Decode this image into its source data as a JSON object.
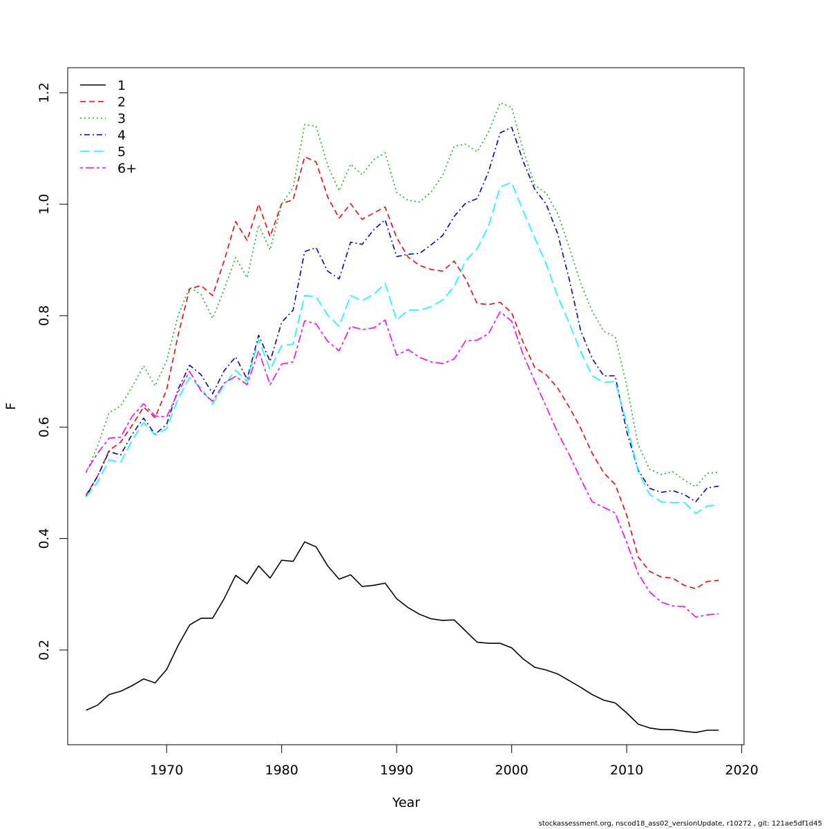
{
  "chart_data": {
    "type": "line",
    "xlabel": "Year",
    "ylabel": "F",
    "xlim": [
      1961.4,
      2020.2
    ],
    "ylim": [
      0.03,
      1.245
    ],
    "x_ticks": [
      1970,
      1980,
      1990,
      2000,
      2010,
      2020
    ],
    "y_ticks": [
      0.2,
      0.4,
      0.6,
      0.8,
      1.0,
      1.2
    ],
    "x_tick_labels": [
      "1970",
      "1980",
      "1990",
      "2000",
      "2010",
      "2020"
    ],
    "y_tick_labels": [
      "0.2",
      "0.4",
      "0.6",
      "0.8",
      "1.0",
      "1.2"
    ],
    "legend_position": "top-left",
    "x": [
      1963,
      1964,
      1965,
      1966,
      1967,
      1968,
      1969,
      1970,
      1971,
      1972,
      1973,
      1974,
      1975,
      1976,
      1977,
      1978,
      1979,
      1980,
      1981,
      1982,
      1983,
      1984,
      1985,
      1986,
      1987,
      1988,
      1989,
      1990,
      1991,
      1992,
      1993,
      1994,
      1995,
      1996,
      1997,
      1998,
      1999,
      2000,
      2001,
      2002,
      2003,
      2004,
      2005,
      2006,
      2007,
      2008,
      2009,
      2010,
      2011,
      2012,
      2013,
      2014,
      2015,
      2016,
      2017,
      2018
    ],
    "series": [
      {
        "name": "1",
        "color": "#000000",
        "dash": "solid",
        "values": [
          0.092,
          0.101,
          0.12,
          0.126,
          0.136,
          0.148,
          0.141,
          0.165,
          0.208,
          0.245,
          0.257,
          0.257,
          0.292,
          0.334,
          0.319,
          0.351,
          0.329,
          0.361,
          0.359,
          0.394,
          0.385,
          0.351,
          0.327,
          0.335,
          0.314,
          0.316,
          0.32,
          0.292,
          0.276,
          0.264,
          0.256,
          0.253,
          0.254,
          0.234,
          0.214,
          0.212,
          0.212,
          0.204,
          0.184,
          0.169,
          0.164,
          0.157,
          0.145,
          0.133,
          0.12,
          0.11,
          0.105,
          0.087,
          0.067,
          0.06,
          0.057,
          0.057,
          0.054,
          0.052,
          0.056,
          0.056
        ]
      },
      {
        "name": "2",
        "color": "#ff0000",
        "dash": "dashed",
        "values": [
          0.478,
          0.512,
          0.558,
          0.573,
          0.603,
          0.636,
          0.617,
          0.667,
          0.765,
          0.848,
          0.854,
          0.836,
          0.898,
          0.969,
          0.935,
          1.0,
          0.942,
          1.001,
          1.008,
          1.085,
          1.076,
          1.013,
          0.975,
          1.001,
          0.973,
          0.984,
          0.995,
          0.94,
          0.905,
          0.89,
          0.883,
          0.88,
          0.898,
          0.866,
          0.822,
          0.82,
          0.824,
          0.805,
          0.752,
          0.707,
          0.694,
          0.67,
          0.636,
          0.598,
          0.553,
          0.518,
          0.497,
          0.442,
          0.367,
          0.341,
          0.331,
          0.329,
          0.316,
          0.31,
          0.323,
          0.325
        ]
      },
      {
        "name": "3",
        "color": "#00bb00",
        "dash": "dotted",
        "values": [
          0.518,
          0.566,
          0.626,
          0.638,
          0.672,
          0.71,
          0.674,
          0.719,
          0.8,
          0.851,
          0.838,
          0.795,
          0.847,
          0.904,
          0.868,
          0.963,
          0.918,
          1.0,
          1.03,
          1.143,
          1.14,
          1.07,
          1.024,
          1.072,
          1.053,
          1.08,
          1.092,
          1.021,
          1.007,
          1.004,
          1.022,
          1.052,
          1.104,
          1.108,
          1.094,
          1.13,
          1.182,
          1.174,
          1.097,
          1.034,
          1.02,
          0.983,
          0.923,
          0.858,
          0.808,
          0.772,
          0.762,
          0.675,
          0.568,
          0.524,
          0.515,
          0.52,
          0.505,
          0.493,
          0.517,
          0.519
        ]
      },
      {
        "name": "4",
        "color": "#0000cc",
        "dash": "dotdash",
        "values": [
          0.476,
          0.512,
          0.556,
          0.55,
          0.587,
          0.616,
          0.587,
          0.605,
          0.668,
          0.711,
          0.694,
          0.66,
          0.701,
          0.726,
          0.686,
          0.765,
          0.718,
          0.788,
          0.81,
          0.915,
          0.922,
          0.88,
          0.866,
          0.932,
          0.928,
          0.954,
          0.972,
          0.906,
          0.91,
          0.912,
          0.927,
          0.944,
          0.978,
          1.002,
          1.01,
          1.059,
          1.128,
          1.138,
          1.077,
          1.027,
          1.0,
          0.947,
          0.866,
          0.773,
          0.723,
          0.692,
          0.692,
          0.592,
          0.523,
          0.49,
          0.483,
          0.486,
          0.479,
          0.466,
          0.491,
          0.494
        ]
      },
      {
        "name": "5",
        "color": "#00ffff",
        "dash": "longdash",
        "values": [
          0.475,
          0.501,
          0.541,
          0.537,
          0.576,
          0.608,
          0.586,
          0.597,
          0.651,
          0.689,
          0.67,
          0.641,
          0.675,
          0.702,
          0.682,
          0.757,
          0.703,
          0.746,
          0.749,
          0.836,
          0.834,
          0.801,
          0.781,
          0.836,
          0.827,
          0.838,
          0.858,
          0.792,
          0.81,
          0.81,
          0.816,
          0.828,
          0.852,
          0.899,
          0.92,
          0.961,
          1.031,
          1.039,
          0.988,
          0.94,
          0.893,
          0.835,
          0.787,
          0.736,
          0.692,
          0.68,
          0.682,
          0.607,
          0.52,
          0.479,
          0.466,
          0.464,
          0.465,
          0.445,
          0.458,
          0.461
        ]
      },
      {
        "name": "6+",
        "color": "#ff00ff",
        "dash": "twodash",
        "values": [
          0.52,
          0.553,
          0.58,
          0.582,
          0.619,
          0.642,
          0.62,
          0.618,
          0.663,
          0.7,
          0.665,
          0.646,
          0.679,
          0.691,
          0.676,
          0.737,
          0.676,
          0.713,
          0.717,
          0.791,
          0.785,
          0.754,
          0.737,
          0.781,
          0.775,
          0.778,
          0.792,
          0.729,
          0.739,
          0.725,
          0.717,
          0.714,
          0.722,
          0.755,
          0.756,
          0.768,
          0.807,
          0.79,
          0.73,
          0.683,
          0.637,
          0.59,
          0.551,
          0.507,
          0.466,
          0.456,
          0.446,
          0.393,
          0.337,
          0.304,
          0.286,
          0.279,
          0.278,
          0.259,
          0.263,
          0.265
        ]
      }
    ]
  },
  "footer_text": "stockassessment.org, nscod18_ass02_versionUpdate, r10272 , git: 121ae5df1d45"
}
